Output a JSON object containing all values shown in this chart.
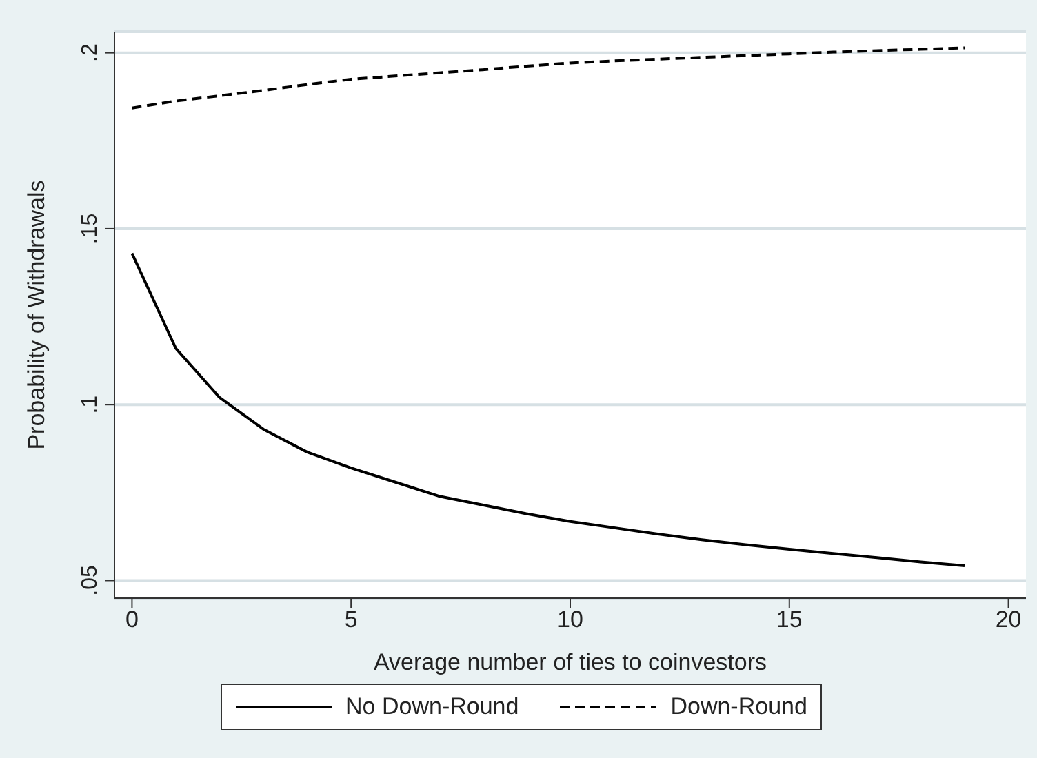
{
  "chart_data": {
    "type": "line",
    "xlabel": "Average number of ties to coinvestors",
    "ylabel": "Probability of Withdrawals",
    "x": [
      0,
      1,
      2,
      3,
      4,
      5,
      6,
      7,
      8,
      9,
      10,
      11,
      12,
      13,
      14,
      15,
      16,
      17,
      18,
      19
    ],
    "series": [
      {
        "name": "No Down-Round",
        "color": "#000000",
        "line_style": "solid",
        "values": [
          0.143,
          0.116,
          0.102,
          0.093,
          0.0865,
          0.082,
          0.078,
          0.074,
          0.0715,
          0.069,
          0.0668,
          0.065,
          0.0632,
          0.0616,
          0.0602,
          0.0589,
          0.0577,
          0.0565,
          0.0553,
          0.0542
        ]
      },
      {
        "name": "Down-Round",
        "color": "#000000",
        "line_style": "dashed",
        "values": [
          0.1843,
          0.1863,
          0.1878,
          0.1893,
          0.191,
          0.1925,
          0.1934,
          0.1943,
          0.1952,
          0.1962,
          0.1971,
          0.1977,
          0.1982,
          0.1987,
          0.1992,
          0.1997,
          0.2002,
          0.2006,
          0.201,
          0.2014
        ]
      }
    ],
    "xlim": [
      -0.4,
      20.4
    ],
    "xticks": [
      0,
      5,
      10,
      15,
      20
    ],
    "ylim": [
      0.045,
      0.206
    ],
    "yticks": [
      {
        "value": 0.05,
        "label": ".05"
      },
      {
        "value": 0.1,
        "label": ".1"
      },
      {
        "value": 0.15,
        "label": ".15"
      },
      {
        "value": 0.2,
        "label": ".2"
      }
    ],
    "grid": "y",
    "legend": "bottom",
    "marker": "none"
  }
}
